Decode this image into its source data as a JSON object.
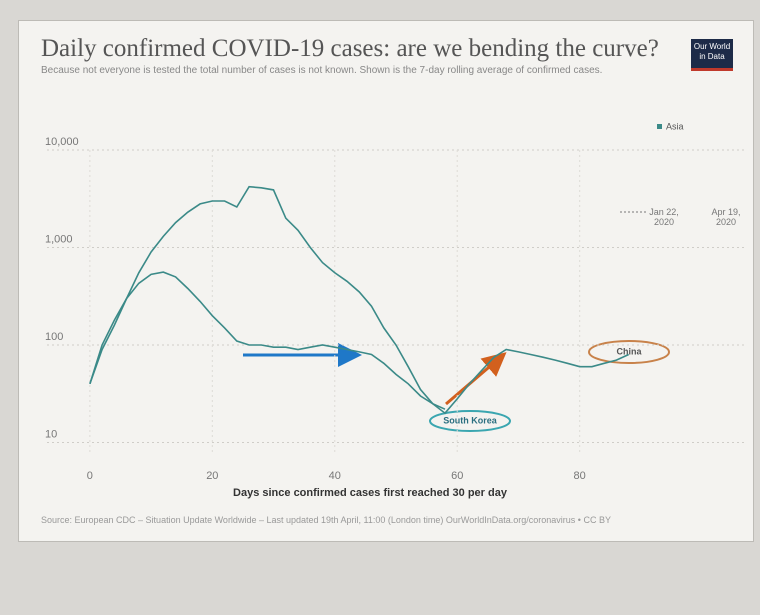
{
  "chart_data": {
    "type": "line",
    "title": "Daily confirmed COVID-19 cases: are we bending the curve?",
    "subtitle": "Because not everyone is tested the total number of cases is not known. Shown is the 7-day rolling average of confirmed cases.",
    "logo": "Our World in Data",
    "legend_label": "Asia",
    "time_start": "Jan 22, 2020",
    "time_end": "Apr 19, 2020",
    "x_label": "Days since confirmed cases first reached 30 per day",
    "source": "Source: European CDC – Situation Update Worldwide – Last updated 19th April, 11:00 (London time) OurWorldInData.org/coronavirus • CC BY",
    "log_scale": true,
    "grid": true,
    "xlim": [
      -7,
      107
    ],
    "xticks": [
      0,
      20,
      40,
      60,
      80
    ],
    "ylim": [
      8,
      10000
    ],
    "yticks": [
      10,
      100,
      {
        "value": 1000,
        "label": "1,000"
      },
      {
        "value": 10000,
        "label": "10,000"
      }
    ],
    "x": [
      0,
      2,
      4,
      6,
      8,
      10,
      12,
      14,
      16,
      18,
      20,
      22,
      24,
      26,
      28,
      30,
      32,
      34,
      36,
      38,
      40,
      42,
      44,
      46,
      48,
      50,
      52,
      54,
      56,
      58,
      60,
      62,
      64,
      66,
      68,
      70,
      72,
      74,
      76,
      78,
      80,
      82,
      84,
      86,
      88
    ],
    "series": [
      {
        "name": "China",
        "color": "#3b8a88",
        "values": [
          40,
          90,
          160,
          300,
          550,
          900,
          1300,
          1800,
          2300,
          2800,
          3000,
          3000,
          2600,
          4200,
          4100,
          3900,
          2000,
          1500,
          1000,
          700,
          550,
          450,
          350,
          250,
          150,
          100,
          60,
          35,
          25,
          20,
          28,
          40,
          55,
          75,
          90,
          85,
          80,
          75,
          70,
          65,
          60,
          60,
          65,
          70,
          80
        ]
      },
      {
        "name": "South Korea",
        "color": "#3b8a88",
        "values": [
          40,
          100,
          180,
          300,
          430,
          530,
          560,
          500,
          380,
          280,
          200,
          150,
          110,
          100,
          100,
          95,
          95,
          90,
          95,
          100,
          95,
          90,
          85,
          80,
          65,
          50,
          40,
          30,
          25,
          22,
          null,
          null,
          null,
          null,
          null,
          null,
          null,
          null,
          null,
          null,
          null,
          null,
          null,
          null,
          null
        ]
      }
    ]
  }
}
